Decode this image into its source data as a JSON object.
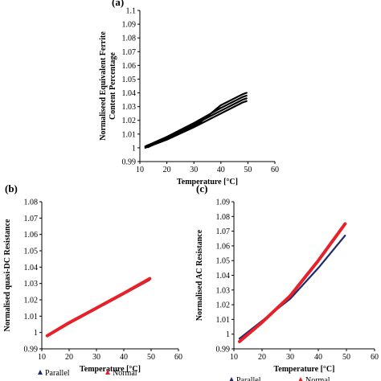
{
  "chart_data": [
    {
      "id": "a",
      "type": "line",
      "panel_label": "(a)",
      "xlabel": "Temperature [°C]",
      "ylabel": "Normaliseed Equivalent Ferrite Content Percentage",
      "ylabel_lines": [
        "Normaliseed Equivalent Ferrite",
        "Content Percentage"
      ],
      "xlim": [
        10,
        60
      ],
      "ylim": [
        0.99,
        1.1
      ],
      "xticks": [
        "10",
        "20",
        "30",
        "40",
        "50",
        "60"
      ],
      "yticks": [
        "0.99",
        "1",
        "1.01",
        "1.02",
        "1.03",
        "1.04",
        "1.05",
        "1.06",
        "1.07",
        "1.08",
        "1.09",
        "1.1"
      ],
      "legend": null,
      "series": [
        {
          "color": "#000000",
          "width": 2.2,
          "x": [
            12,
            20,
            30,
            40,
            48,
            49.5
          ],
          "y": [
            1.001,
            1.008,
            1.018,
            1.029,
            1.037,
            1.038
          ]
        },
        {
          "color": "#000000",
          "width": 2.2,
          "x": [
            12,
            20,
            30,
            40,
            48,
            49.5
          ],
          "y": [
            1.0,
            1.006,
            1.015,
            1.025,
            1.033,
            1.034
          ]
        },
        {
          "color": "#000000",
          "width": 2.2,
          "x": [
            12.5,
            20,
            30,
            40,
            48,
            49.5
          ],
          "y": [
            1.0015,
            1.007,
            1.017,
            1.027,
            1.035,
            1.036
          ]
        },
        {
          "color": "#000000",
          "width": 2.2,
          "x": [
            13,
            20,
            32,
            40,
            48,
            49.5
          ],
          "y": [
            1.0005,
            1.007,
            1.018,
            1.031,
            1.039,
            1.04
          ]
        }
      ]
    },
    {
      "id": "b",
      "type": "line",
      "panel_label": "(b)",
      "xlabel": "Temperature [°C]",
      "ylabel": "Normalised quasi-DC Resistance",
      "ylabel_lines": [
        "Normalised quasi-DC Resistance"
      ],
      "xlim": [
        10,
        60
      ],
      "ylim": [
        0.99,
        1.08
      ],
      "xticks": [
        "10",
        "20",
        "30",
        "40",
        "50",
        "60"
      ],
      "yticks": [
        "0.99",
        "1",
        "1.01",
        "1.02",
        "1.03",
        "1.04",
        "1.05",
        "1.06",
        "1.07",
        "1.08"
      ],
      "legend": {
        "placement": "bottom",
        "entries": [
          {
            "label": "Parallel",
            "color": "#1b2a6b"
          },
          {
            "label": "Normal",
            "color": "#e8202a"
          }
        ]
      },
      "series": [
        {
          "name": "Parallel",
          "color": "#1b2a6b",
          "width": 1.5,
          "x": [
            12,
            49.5
          ],
          "y": [
            0.998,
            1.032
          ]
        },
        {
          "name": "Normal",
          "color": "#e8202a",
          "width": 4,
          "x": [
            12,
            20,
            30,
            40,
            49.5
          ],
          "y": [
            0.998,
            1.006,
            1.015,
            1.024,
            1.033
          ]
        }
      ]
    },
    {
      "id": "c",
      "type": "line",
      "panel_label": "(c)",
      "xlabel": "Temperature [°C]",
      "ylabel": "Normalised AC Resistance",
      "ylabel_lines": [
        "Normalised AC Resistance"
      ],
      "xlim": [
        10,
        60
      ],
      "ylim": [
        0.99,
        1.09
      ],
      "xticks": [
        "10",
        "20",
        "30",
        "40",
        "50",
        "60"
      ],
      "yticks": [
        "0.99",
        "1",
        "1.01",
        "1.02",
        "1.03",
        "1.04",
        "1.05",
        "1.06",
        "1.07",
        "1.08",
        "1.09"
      ],
      "legend": {
        "placement": "bottom",
        "entries": [
          {
            "label": "Parallel",
            "color": "#1b2a6b"
          },
          {
            "label": "Normal",
            "color": "#e8202a"
          }
        ]
      },
      "series": [
        {
          "name": "Parallel",
          "color": "#1b2a6b",
          "width": 2.2,
          "x": [
            12,
            20,
            30,
            40,
            49.5
          ],
          "y": [
            0.997,
            1.009,
            1.024,
            1.045,
            1.067
          ]
        },
        {
          "name": "Normal",
          "color": "#e8202a",
          "width": 4,
          "x": [
            12,
            20,
            30,
            40,
            49.5
          ],
          "y": [
            0.995,
            1.008,
            1.026,
            1.05,
            1.075
          ]
        }
      ]
    }
  ]
}
